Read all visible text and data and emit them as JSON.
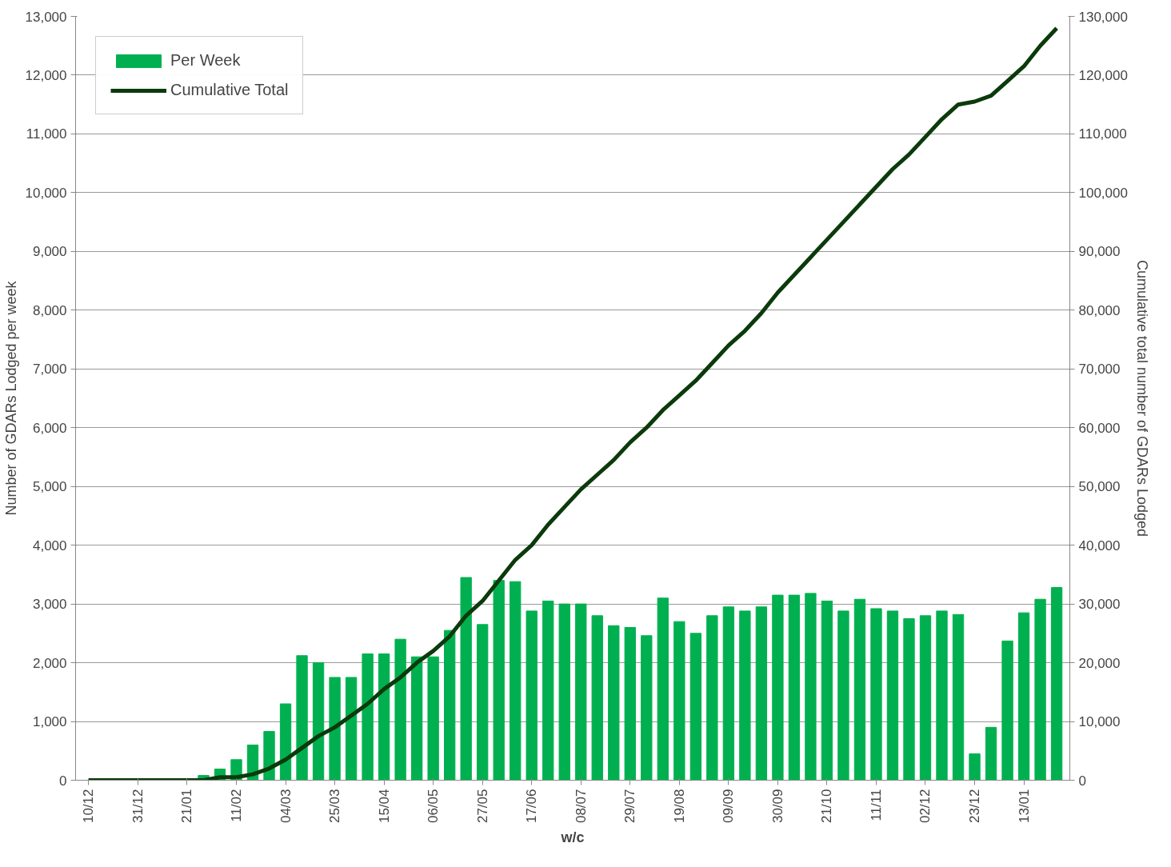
{
  "chart_data": {
    "type": "bar",
    "xlabel": "w/c",
    "ylabel": "Number of GDARs Lodged per week",
    "y2label": "Cumulative total number of GDARs Lodged",
    "categories": [
      "10/12",
      null,
      null,
      "31/12",
      null,
      null,
      "21/01",
      null,
      null,
      "11/02",
      null,
      null,
      "04/03",
      null,
      null,
      "25/03",
      null,
      null,
      "15/04",
      null,
      null,
      "06/05",
      null,
      null,
      "27/05",
      null,
      null,
      "17/06",
      null,
      null,
      "08/07",
      null,
      null,
      "29/07",
      null,
      null,
      "19/08",
      null,
      null,
      "09/09",
      null,
      null,
      "30/09",
      null,
      null,
      "21/10",
      null,
      null,
      "11/11",
      null,
      null,
      "02/12",
      null,
      null,
      "23/12",
      null,
      null,
      "13/01",
      null,
      null
    ],
    "series": [
      {
        "name": "Per Week",
        "color": "#00b050",
        "values": [
          0,
          0,
          0,
          0,
          0,
          0,
          20,
          80,
          190,
          350,
          600,
          830,
          1300,
          2120,
          2000,
          1750,
          1750,
          2150,
          2150,
          2400,
          2100,
          2100,
          2550,
          3450,
          2650,
          3400,
          3380,
          2880,
          3050,
          3000,
          3000,
          2800,
          2630,
          2600,
          2460,
          3100,
          2700,
          2500,
          2800,
          2950,
          2880,
          2950,
          3150,
          3150,
          3180,
          3050,
          2880,
          3080,
          2920,
          2880,
          2750,
          2800,
          2880,
          2820,
          450,
          900,
          2370,
          2850,
          3080,
          3280
        ]
      },
      {
        "name": "Cumulative Total",
        "type": "line",
        "axis": "y2",
        "color": "#0b3a0b",
        "values": [
          0,
          0,
          0,
          0,
          0,
          0,
          0,
          0,
          500,
          500,
          1000,
          2000,
          3500,
          5500,
          7500,
          9000,
          11000,
          13000,
          15500,
          17500,
          20000,
          22000,
          24500,
          28000,
          30500,
          34000,
          37500,
          40000,
          43500,
          46500,
          49500,
          52000,
          54500,
          57500,
          60000,
          63000,
          65500,
          68000,
          71000,
          74000,
          76500,
          79500,
          83000,
          86000,
          89000,
          92000,
          95000,
          98000,
          101000,
          104000,
          106500,
          109500,
          112500,
          115000,
          115500,
          116500,
          119000,
          121500,
          125000,
          128000
        ]
      }
    ],
    "ylim": [
      0,
      13000
    ],
    "yticks": [
      {
        "value": 0,
        "label": "0"
      },
      {
        "value": 1000,
        "label": "1,000"
      },
      {
        "value": 2000,
        "label": "2,000"
      },
      {
        "value": 3000,
        "label": "3,000"
      },
      {
        "value": 4000,
        "label": "4,000"
      },
      {
        "value": 5000,
        "label": "5,000"
      },
      {
        "value": 6000,
        "label": "6,000"
      },
      {
        "value": 7000,
        "label": "7,000"
      },
      {
        "value": 8000,
        "label": "8,000"
      },
      {
        "value": 9000,
        "label": "9,000"
      },
      {
        "value": 10000,
        "label": "10,000"
      },
      {
        "value": 11000,
        "label": "11,000"
      },
      {
        "value": 12000,
        "label": "12,000"
      },
      {
        "value": 13000,
        "label": "13,000"
      }
    ],
    "y2lim": [
      0,
      130000
    ],
    "y2ticks": [
      {
        "value": 0,
        "label": "0"
      },
      {
        "value": 10000,
        "label": "10,000"
      },
      {
        "value": 20000,
        "label": "20,000"
      },
      {
        "value": 30000,
        "label": "30,000"
      },
      {
        "value": 40000,
        "label": "40,000"
      },
      {
        "value": 50000,
        "label": "50,000"
      },
      {
        "value": 60000,
        "label": "60,000"
      },
      {
        "value": 70000,
        "label": "70,000"
      },
      {
        "value": 80000,
        "label": "80,000"
      },
      {
        "value": 90000,
        "label": "90,000"
      },
      {
        "value": 100000,
        "label": "100,000"
      },
      {
        "value": 110000,
        "label": "110,000"
      },
      {
        "value": 120000,
        "label": "120,000"
      },
      {
        "value": 130000,
        "label": "130,000"
      }
    ],
    "grid": "y",
    "legend": "top left"
  }
}
